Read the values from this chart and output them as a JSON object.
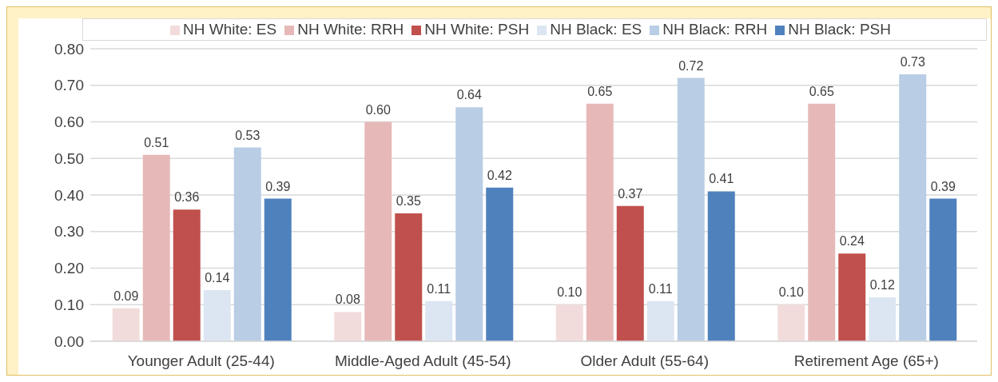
{
  "chart_data": {
    "type": "bar",
    "categories": [
      "Younger Adult (25-44)",
      "Middle-Aged Adult (45-54)",
      "Older Adult (55-64)",
      "Retirement Age (65+)"
    ],
    "series": [
      {
        "name": "NH White: ES",
        "color": "#f2dcdb",
        "values": [
          0.09,
          0.08,
          0.1,
          0.1
        ],
        "value_labels": [
          "0.09",
          "0.08",
          "0.10",
          "0.10"
        ]
      },
      {
        "name": "NH White: RRH",
        "color": "#e6b9b8",
        "values": [
          0.51,
          0.6,
          0.65,
          0.65
        ],
        "value_labels": [
          "0.51",
          "0.60",
          "0.65",
          "0.65"
        ]
      },
      {
        "name": "NH White: PSH",
        "color": "#c0504d",
        "values": [
          0.36,
          0.35,
          0.37,
          0.24
        ],
        "value_labels": [
          "0.36",
          "0.35",
          "0.37",
          "0.24"
        ]
      },
      {
        "name": "NH Black: ES",
        "color": "#dce6f2",
        "values": [
          0.14,
          0.11,
          0.11,
          0.12
        ],
        "value_labels": [
          "0.14",
          "0.11",
          "0.11",
          "0.12"
        ]
      },
      {
        "name": "NH Black: RRH",
        "color": "#b9cde5",
        "values": [
          0.53,
          0.64,
          0.72,
          0.73
        ],
        "value_labels": [
          "0.53",
          "0.64",
          "0.72",
          "0.73"
        ]
      },
      {
        "name": "NH Black: PSH",
        "color": "#4f81bd",
        "values": [
          0.39,
          0.42,
          0.41,
          0.39
        ],
        "value_labels": [
          "0.39",
          "0.42",
          "0.41",
          "0.39"
        ]
      }
    ],
    "ylim": [
      0,
      0.8
    ],
    "yticks": [
      {
        "value": 0,
        "label": "0.00"
      },
      {
        "value": 0.1,
        "label": "0.10"
      },
      {
        "value": 0.2,
        "label": "0.20"
      },
      {
        "value": 0.3,
        "label": "0.30"
      },
      {
        "value": 0.4,
        "label": "0.40"
      },
      {
        "value": 0.5,
        "label": "0.50"
      },
      {
        "value": 0.6,
        "label": "0.60"
      },
      {
        "value": 0.7,
        "label": "0.70"
      },
      {
        "value": 0.8,
        "label": "0.80"
      }
    ],
    "grid": "y",
    "legend": "top"
  }
}
